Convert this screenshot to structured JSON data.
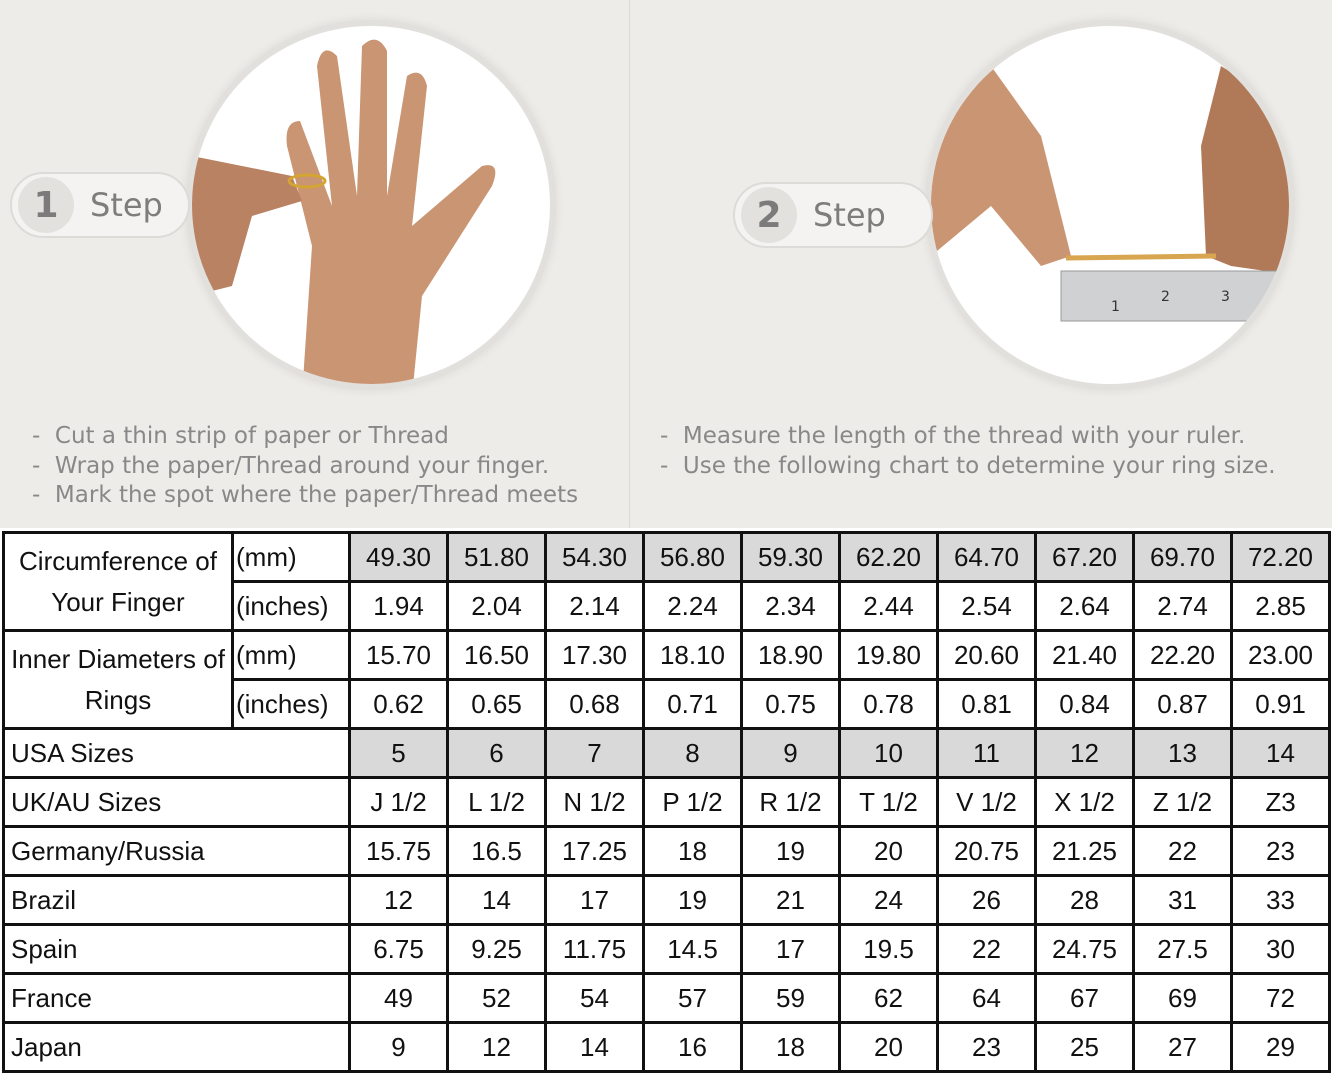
{
  "steps": [
    {
      "number": "1",
      "label": "Step",
      "notes": [
        "Cut a thin strip of paper or Thread",
        "Wrap the paper/Thread around your finger.",
        "Mark the spot where the paper/Thread meets"
      ]
    },
    {
      "number": "2",
      "label": "Step",
      "notes": [
        "Measure the length of the thread with your ruler.",
        "Use the following chart to determine your ring size."
      ]
    }
  ],
  "ruler_marks": [
    "1",
    "2",
    "3"
  ],
  "chart_data": {
    "type": "table",
    "groups": [
      {
        "label": "Circumference of Your Finger",
        "rows": [
          {
            "unit": "(mm)",
            "values": [
              "49.30",
              "51.80",
              "54.30",
              "56.80",
              "59.30",
              "62.20",
              "64.70",
              "67.20",
              "69.70",
              "72.20"
            ],
            "shaded": true
          },
          {
            "unit": "(inches)",
            "values": [
              "1.94",
              "2.04",
              "2.14",
              "2.24",
              "2.34",
              "2.44",
              "2.54",
              "2.64",
              "2.74",
              "2.85"
            ]
          }
        ]
      },
      {
        "label": "Inner Diameters of Rings",
        "rows": [
          {
            "unit": "(mm)",
            "values": [
              "15.70",
              "16.50",
              "17.30",
              "18.10",
              "18.90",
              "19.80",
              "20.60",
              "21.40",
              "22.20",
              "23.00"
            ]
          },
          {
            "unit": "(inches)",
            "values": [
              "0.62",
              "0.65",
              "0.68",
              "0.71",
              "0.75",
              "0.78",
              "0.81",
              "0.84",
              "0.87",
              "0.91"
            ]
          }
        ]
      }
    ],
    "rows": [
      {
        "label": "USA Sizes",
        "values": [
          "5",
          "6",
          "7",
          "8",
          "9",
          "10",
          "11",
          "12",
          "13",
          "14"
        ],
        "shaded": true
      },
      {
        "label": "UK/AU Sizes",
        "values": [
          "J 1/2",
          "L 1/2",
          "N 1/2",
          "P 1/2",
          "R 1/2",
          "T 1/2",
          "V 1/2",
          "X 1/2",
          "Z 1/2",
          "Z3"
        ]
      },
      {
        "label": "Germany/Russia",
        "values": [
          "15.75",
          "16.5",
          "17.25",
          "18",
          "19",
          "20",
          "20.75",
          "21.25",
          "22",
          "23"
        ]
      },
      {
        "label": "Brazil",
        "values": [
          "12",
          "14",
          "17",
          "19",
          "21",
          "24",
          "26",
          "28",
          "31",
          "33"
        ]
      },
      {
        "label": "Spain",
        "values": [
          "6.75",
          "9.25",
          "11.75",
          "14.5",
          "17",
          "19.5",
          "22",
          "24.75",
          "27.5",
          "30"
        ]
      },
      {
        "label": "France",
        "values": [
          "49",
          "52",
          "54",
          "57",
          "59",
          "62",
          "64",
          "67",
          "69",
          "72"
        ]
      },
      {
        "label": "Japan",
        "values": [
          "9",
          "12",
          "14",
          "16",
          "18",
          "20",
          "23",
          "25",
          "27",
          "29"
        ]
      }
    ]
  }
}
